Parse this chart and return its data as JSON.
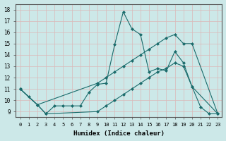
{
  "title": "",
  "xlabel": "Humidex (Indice chaleur)",
  "ylabel": "",
  "bg_color": "#cce8e8",
  "grid_color": "#dbb8b8",
  "line_color": "#1a6b6b",
  "xlim": [
    -0.5,
    23.5
  ],
  "ylim": [
    8.5,
    18.5
  ],
  "xticks": [
    0,
    1,
    2,
    3,
    4,
    5,
    6,
    7,
    8,
    9,
    10,
    11,
    12,
    13,
    14,
    15,
    16,
    17,
    18,
    19,
    20,
    21,
    22,
    23
  ],
  "yticks": [
    9,
    10,
    11,
    12,
    13,
    14,
    15,
    16,
    17,
    18
  ],
  "series": [
    {
      "x": [
        0,
        1,
        2,
        3,
        4,
        5,
        6,
        7,
        8,
        9,
        10,
        11,
        12,
        13,
        14,
        15,
        16,
        17,
        18,
        19,
        20,
        21,
        22,
        23
      ],
      "y": [
        11.0,
        10.3,
        9.6,
        8.8,
        9.5,
        9.5,
        9.5,
        9.5,
        10.7,
        11.4,
        11.5,
        14.9,
        17.8,
        16.3,
        15.8,
        12.5,
        12.8,
        12.6,
        14.3,
        13.3,
        11.2,
        9.4,
        8.8,
        8.8
      ]
    },
    {
      "x": [
        0,
        2,
        9,
        10,
        11,
        12,
        13,
        14,
        15,
        16,
        17,
        18,
        19,
        20,
        23
      ],
      "y": [
        11.0,
        9.6,
        11.5,
        12.0,
        12.5,
        13.0,
        13.5,
        14.0,
        14.5,
        15.0,
        15.5,
        15.8,
        15.0,
        15.0,
        8.8
      ]
    },
    {
      "x": [
        0,
        2,
        3,
        9,
        10,
        11,
        12,
        13,
        14,
        15,
        16,
        17,
        18,
        19,
        20,
        23
      ],
      "y": [
        11.0,
        9.6,
        8.8,
        9.0,
        9.5,
        10.0,
        10.5,
        11.0,
        11.5,
        12.0,
        12.5,
        12.8,
        13.3,
        13.0,
        11.2,
        8.8
      ]
    }
  ]
}
